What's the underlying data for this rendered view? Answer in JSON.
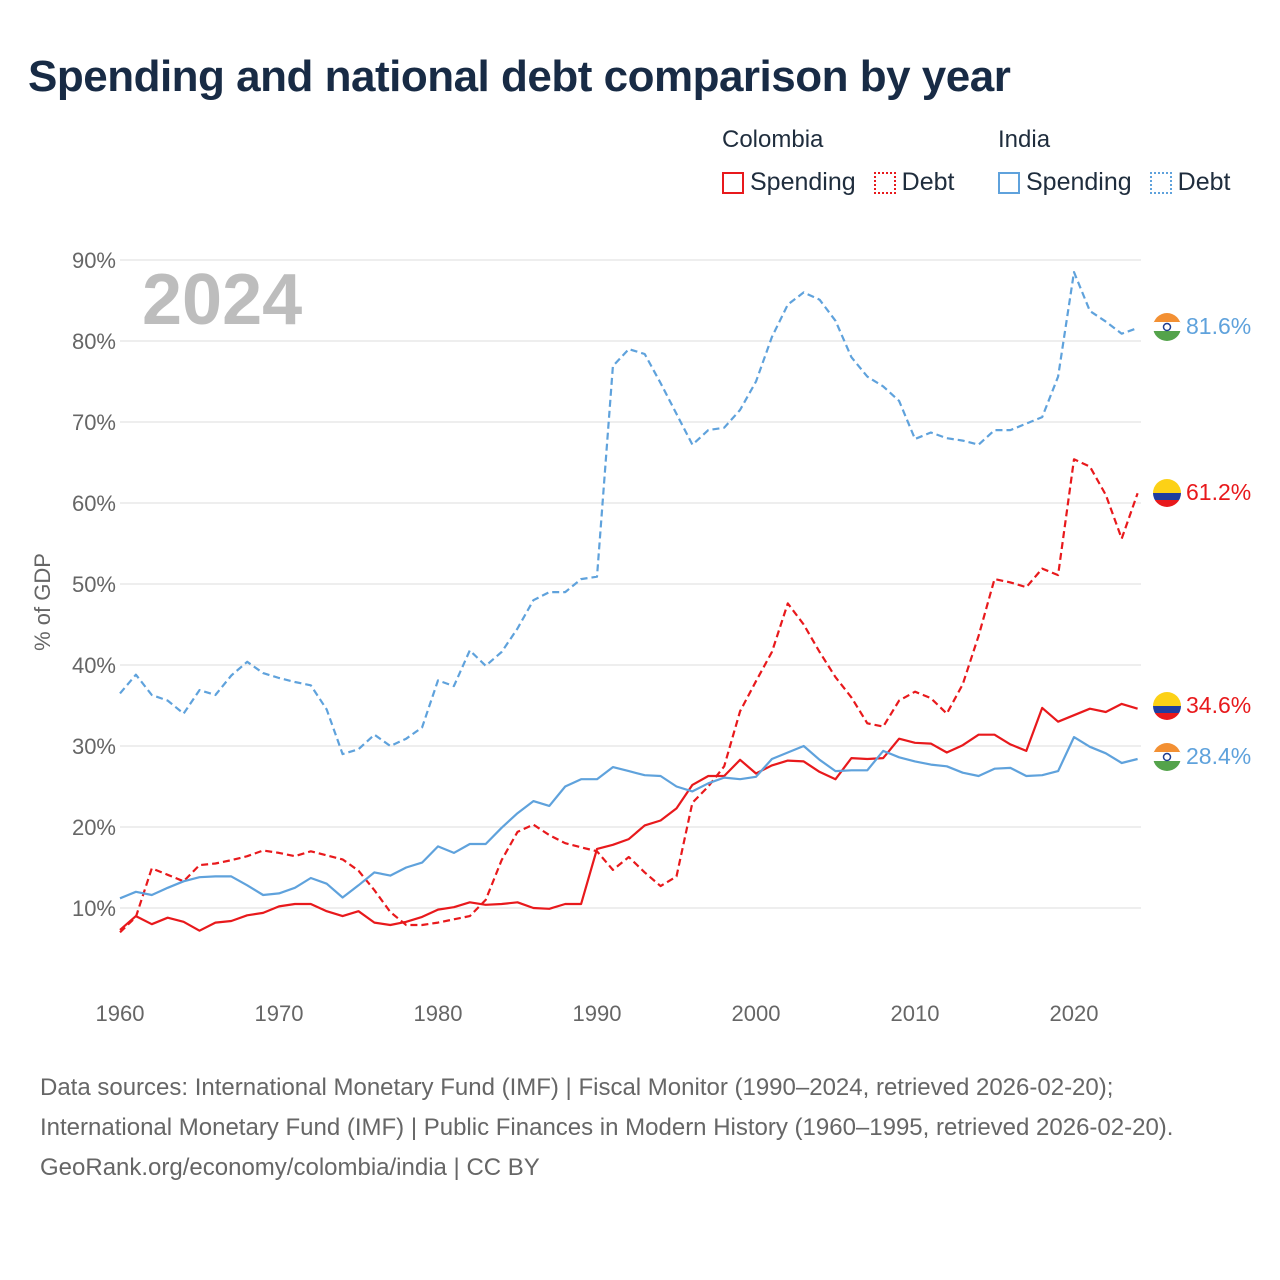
{
  "title": "Spending and national debt comparison by year",
  "legend": {
    "groups": [
      {
        "country": "Colombia",
        "items": [
          {
            "label": "Spending",
            "style": "solid",
            "color": "#e8191c"
          },
          {
            "label": "Debt",
            "style": "dotted",
            "color": "#e8191c"
          }
        ]
      },
      {
        "country": "India",
        "items": [
          {
            "label": "Spending",
            "style": "solid",
            "color": "#5fa2dc"
          },
          {
            "label": "Debt",
            "style": "dotted",
            "color": "#5fa2dc"
          }
        ]
      }
    ]
  },
  "colors": {
    "colombia": "#e8191c",
    "india": "#5fa2dc",
    "grid": "#dddddd",
    "axis_text": "#666666",
    "year_watermark": "#bdbdbd"
  },
  "chart_data": {
    "type": "line",
    "year_label": "2024",
    "ylabel": "% of GDP",
    "xlabel": "",
    "xlim": [
      1960,
      2025
    ],
    "ylim": [
      0,
      90
    ],
    "x_ticks": [
      1960,
      1970,
      1980,
      1990,
      2000,
      2010,
      2020
    ],
    "y_ticks": [
      10,
      20,
      30,
      40,
      50,
      60,
      70,
      80,
      90
    ],
    "y_tick_labels": [
      "10%",
      "20%",
      "30%",
      "40%",
      "50%",
      "60%",
      "70%",
      "80%",
      "90%"
    ],
    "x": [
      1960,
      1961,
      1962,
      1963,
      1964,
      1965,
      1966,
      1967,
      1968,
      1969,
      1970,
      1971,
      1972,
      1973,
      1974,
      1975,
      1976,
      1977,
      1978,
      1979,
      1980,
      1981,
      1982,
      1983,
      1984,
      1985,
      1986,
      1987,
      1988,
      1989,
      1990,
      1991,
      1992,
      1993,
      1994,
      1995,
      1996,
      1997,
      1998,
      1999,
      2000,
      2001,
      2002,
      2003,
      2004,
      2005,
      2006,
      2007,
      2008,
      2009,
      2010,
      2011,
      2012,
      2013,
      2014,
      2015,
      2016,
      2017,
      2018,
      2019,
      2020,
      2021,
      2022,
      2023,
      2024
    ],
    "series": [
      {
        "name": "Colombia Spending",
        "country": "colombia",
        "style": "solid",
        "end_label": "34.6%",
        "values": [
          7.3,
          9.0,
          8.0,
          8.8,
          8.3,
          7.2,
          8.2,
          8.4,
          9.1,
          9.4,
          10.2,
          10.5,
          10.5,
          9.6,
          9.0,
          9.6,
          8.2,
          7.9,
          8.3,
          8.9,
          9.8,
          10.1,
          10.7,
          10.4,
          10.5,
          10.7,
          10.0,
          9.9,
          10.5,
          10.5,
          17.3,
          17.8,
          18.5,
          20.2,
          20.8,
          22.3,
          25.2,
          26.3,
          26.3,
          28.3,
          26.6,
          27.6,
          28.2,
          28.1,
          26.8,
          25.9,
          28.5,
          28.4,
          28.5,
          30.9,
          30.4,
          30.3,
          29.2,
          30.1,
          31.4,
          31.4,
          30.2,
          29.4,
          34.7,
          33.0,
          33.8,
          34.6,
          34.2,
          35.2,
          34.6
        ]
      },
      {
        "name": "Colombia Debt",
        "country": "colombia",
        "style": "dashed",
        "end_label": "61.2%",
        "values": [
          7.0,
          8.9,
          14.9,
          14.1,
          13.3,
          15.3,
          15.5,
          15.9,
          16.4,
          17.1,
          16.8,
          16.4,
          17.0,
          16.5,
          16.0,
          14.6,
          12.2,
          9.5,
          7.9,
          7.9,
          8.2,
          8.6,
          9.0,
          11.0,
          15.9,
          19.4,
          20.3,
          19.0,
          18.0,
          17.5,
          17.0,
          14.7,
          16.3,
          14.4,
          12.7,
          13.9,
          23.0,
          25.0,
          27.5,
          34.3,
          38.0,
          41.6,
          47.6,
          45.0,
          41.6,
          38.5,
          36.0,
          32.8,
          32.4,
          35.6,
          36.7,
          35.9,
          34.0,
          37.6,
          43.6,
          50.6,
          50.2,
          49.6,
          51.9,
          51.1,
          65.4,
          64.5,
          61.0,
          55.6,
          61.2
        ]
      },
      {
        "name": "India Spending",
        "country": "india",
        "style": "solid",
        "end_label": "28.4%",
        "values": [
          11.2,
          12.0,
          11.6,
          12.5,
          13.3,
          13.8,
          13.9,
          13.9,
          12.8,
          11.6,
          11.8,
          12.5,
          13.7,
          13.0,
          11.3,
          12.8,
          14.4,
          14.0,
          15.0,
          15.6,
          17.6,
          16.8,
          17.9,
          17.9,
          19.9,
          21.7,
          23.2,
          22.6,
          25.0,
          25.9,
          25.9,
          27.4,
          26.9,
          26.4,
          26.3,
          25.0,
          24.4,
          25.4,
          26.1,
          25.9,
          26.2,
          28.4,
          29.2,
          30.0,
          28.3,
          26.9,
          27.0,
          27.0,
          29.4,
          28.6,
          28.1,
          27.7,
          27.5,
          26.7,
          26.3,
          27.2,
          27.3,
          26.3,
          26.4,
          26.9,
          31.1,
          29.9,
          29.1,
          27.9,
          28.4
        ]
      },
      {
        "name": "India Debt",
        "country": "india",
        "style": "dashed",
        "end_label": "81.6%",
        "values": [
          36.5,
          38.8,
          36.3,
          35.6,
          34.0,
          36.9,
          36.3,
          38.7,
          40.4,
          39.0,
          38.4,
          37.9,
          37.5,
          34.5,
          29.0,
          29.6,
          31.4,
          30.0,
          30.9,
          32.3,
          38.1,
          37.4,
          41.8,
          39.9,
          41.6,
          44.5,
          48.0,
          49.0,
          49.0,
          50.6,
          50.9,
          76.9,
          79.0,
          78.4,
          74.8,
          71.0,
          67.2,
          69.0,
          69.3,
          71.5,
          75.0,
          80.5,
          84.5,
          86.0,
          85.1,
          82.5,
          78.0,
          75.6,
          74.4,
          72.6,
          67.9,
          68.7,
          68.0,
          67.7,
          67.2,
          69.0,
          69.0,
          69.8,
          70.6,
          75.6,
          88.5,
          83.7,
          82.4,
          80.9,
          81.6
        ]
      }
    ]
  },
  "footer": {
    "sources": "Data sources: International Monetary Fund (IMF) | Fiscal Monitor (1990–2024, retrieved 2026-02-20); International Monetary Fund (IMF) | Public Finances in Modern History (1960–1995, retrieved 2026-02-20).",
    "credit": "GeoRank.org/economy/colombia/india | CC BY"
  }
}
